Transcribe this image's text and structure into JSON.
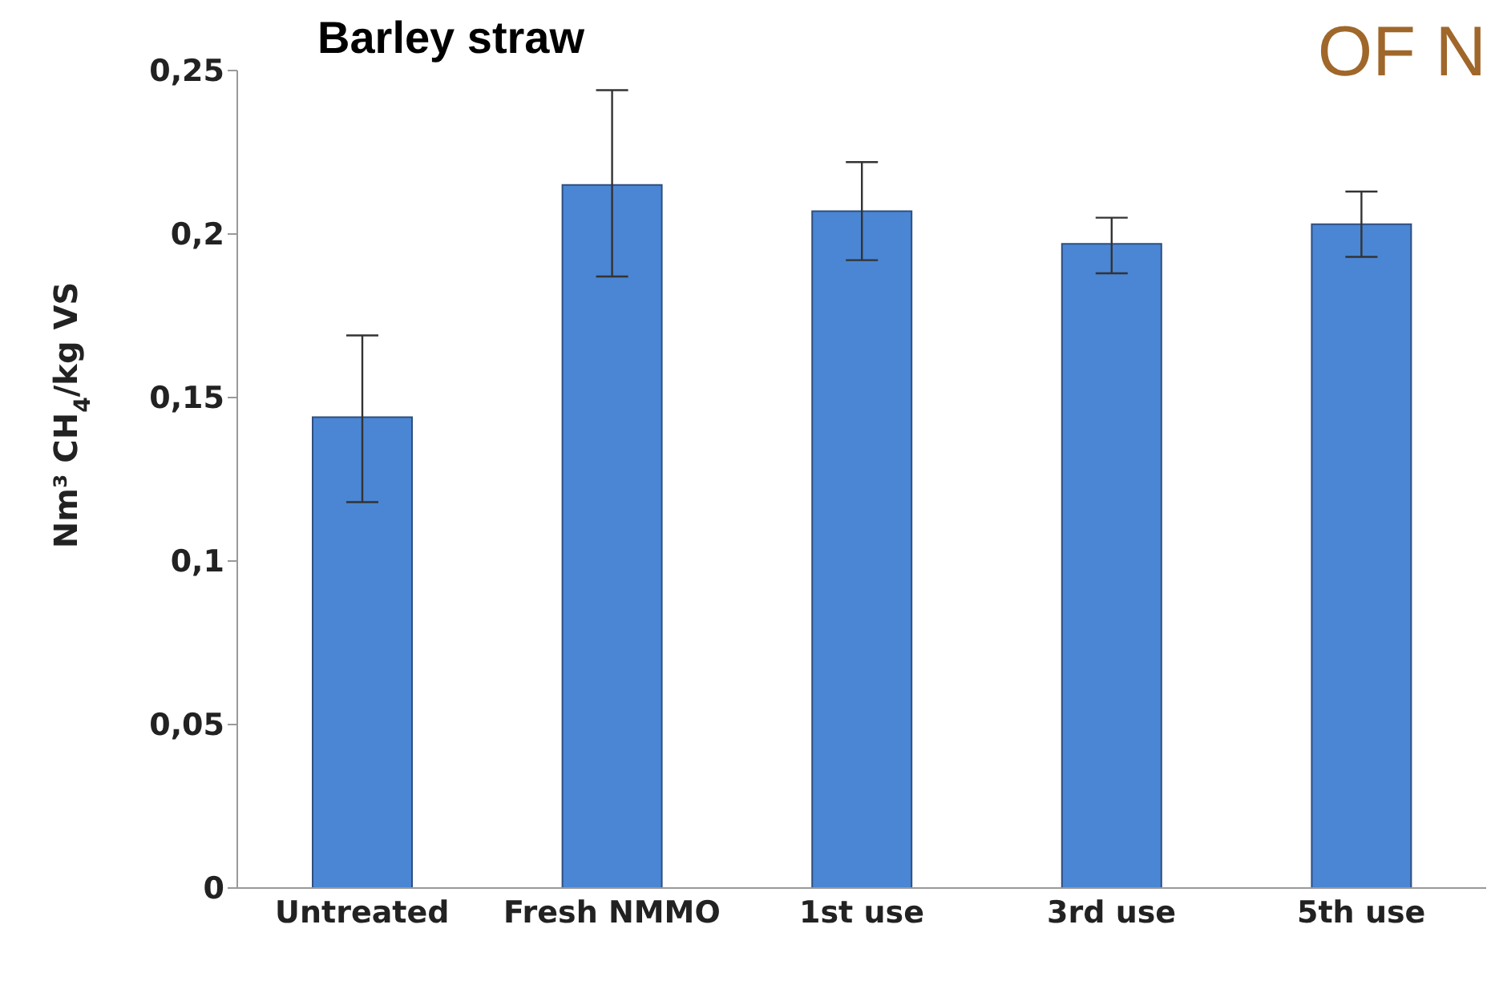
{
  "chart_data": {
    "type": "bar",
    "title": "Barley straw",
    "ylabel": "Nm³ CH$_{4}$/kg VS",
    "annotations": [
      "OF N"
    ],
    "categories": [
      "Untreated",
      "Fresh NMMO",
      "1st use",
      "3rd use",
      "5th use"
    ],
    "values": [
      0.144,
      0.215,
      0.207,
      0.197,
      0.203
    ],
    "errors": [
      [
        0.118,
        0.169
      ],
      [
        0.187,
        0.244
      ],
      [
        0.192,
        0.222
      ],
      [
        0.188,
        0.205
      ],
      [
        0.193,
        0.213
      ]
    ],
    "color": "#4a86d4",
    "ylim": [
      0,
      0.25
    ],
    "yticks": [
      0,
      {
        "value": 0.05,
        "label": "0,05"
      },
      {
        "value": 0.1,
        "label": "0,1"
      },
      {
        "value": 0.15,
        "label": "0,15"
      },
      {
        "value": 0.2,
        "label": "0,2"
      },
      {
        "value": 0.25,
        "label": "0,25"
      }
    ],
    "grid": false,
    "legend": false
  }
}
